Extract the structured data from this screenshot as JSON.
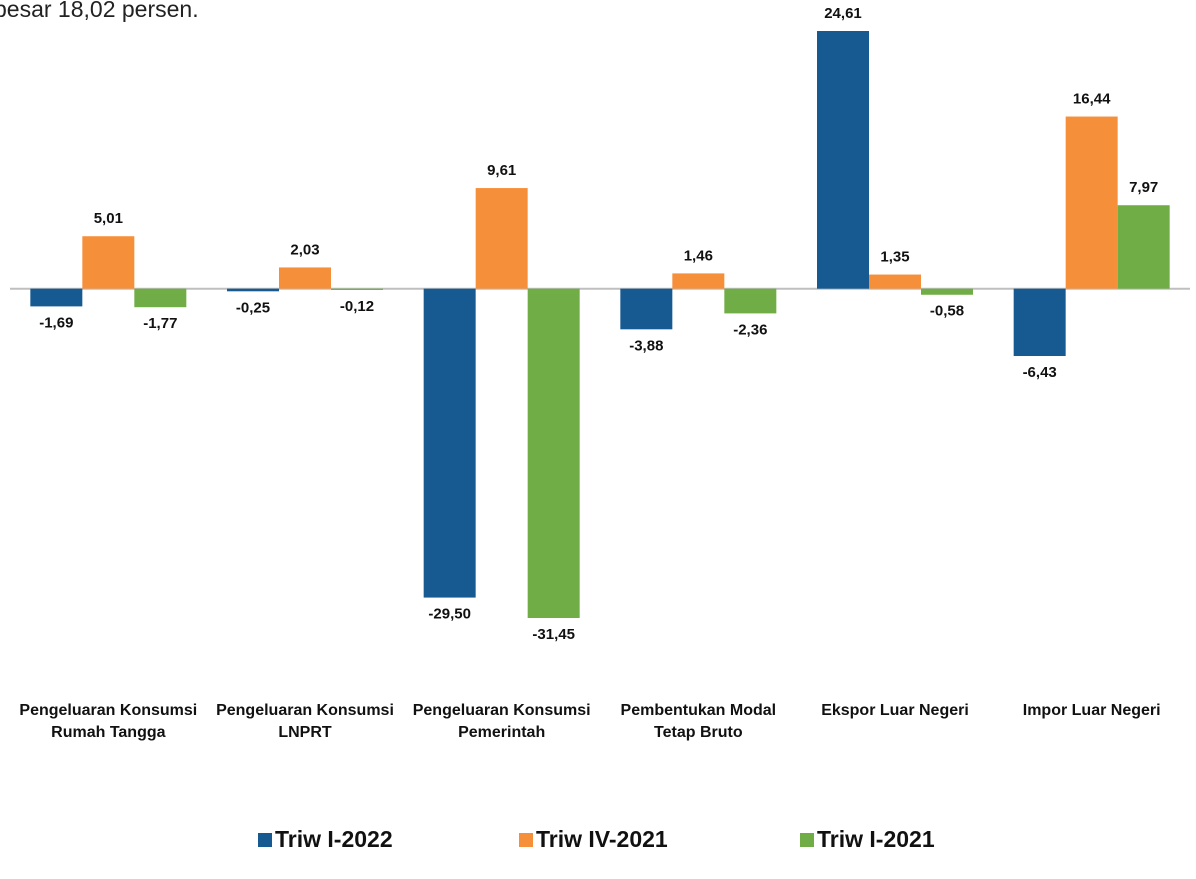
{
  "caption": "besar 18,02 persen.",
  "chart_data": {
    "type": "bar",
    "categories": [
      "Pengeluaran Konsumsi Rumah Tangga",
      "Pengeluaran Konsumsi LNPRT",
      "Pengeluaran Konsumsi Pemerintah",
      "Pembentukan Modal Tetap Bruto",
      "Ekspor Luar Negeri",
      "Impor Luar Negeri"
    ],
    "series": [
      {
        "name": "Triw I-2022",
        "color": "#175a92",
        "values": [
          -1.69,
          -0.25,
          -29.5,
          -3.88,
          24.61,
          -6.43
        ],
        "value_labels": [
          "-1,69",
          "-0,25",
          "-29,50",
          "-3,88",
          "24,61",
          "-6,43"
        ]
      },
      {
        "name": "Triw IV-2021",
        "color": "#f58f3a",
        "values": [
          5.01,
          2.03,
          9.61,
          1.46,
          1.35,
          16.44
        ],
        "value_labels": [
          "5,01",
          "2,03",
          "9,61",
          "1,46",
          "1,35",
          "16,44"
        ]
      },
      {
        "name": "Triw I-2021",
        "color": "#70ad47",
        "values": [
          -1.77,
          -0.12,
          -31.45,
          -2.36,
          -0.58,
          7.97
        ],
        "value_labels": [
          "-1,77",
          "-0,12",
          "-31,45",
          "-2,36",
          "-0,58",
          "7,97"
        ]
      }
    ]
  }
}
